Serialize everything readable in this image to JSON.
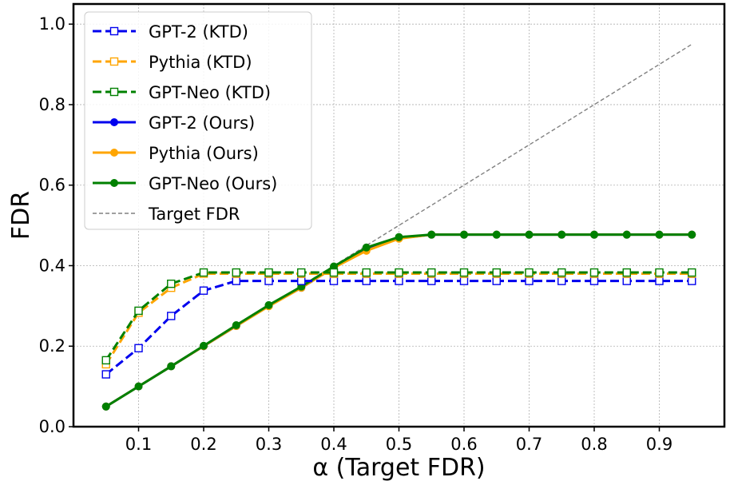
{
  "chart_data": {
    "type": "line",
    "title": "",
    "xlabel": "α (Target FDR)",
    "ylabel": "FDR",
    "xlim": [
      0.0,
      1.0
    ],
    "ylim": [
      0.0,
      1.05
    ],
    "xticks": [
      0.1,
      0.2,
      0.3,
      0.4,
      0.5,
      0.6,
      0.7,
      0.8,
      0.9
    ],
    "xtick_labels": [
      "0.1",
      "0.2",
      "0.3",
      "0.4",
      "0.5",
      "0.6",
      "0.7",
      "0.8",
      "0.9"
    ],
    "yticks": [
      0.0,
      0.2,
      0.4,
      0.6,
      0.8,
      1.0
    ],
    "ytick_labels": [
      "0.0",
      "0.2",
      "0.4",
      "0.6",
      "0.8",
      "1.0"
    ],
    "grid": true,
    "legend_position": "top-left",
    "x": [
      0.05,
      0.1,
      0.15,
      0.2,
      0.25,
      0.3,
      0.35,
      0.4,
      0.45,
      0.5,
      0.55,
      0.6,
      0.65,
      0.7,
      0.75,
      0.8,
      0.85,
      0.9,
      0.95
    ],
    "series": [
      {
        "name": "GPT-2 (KTD)",
        "color": "#0000ee",
        "style": "dashed",
        "marker": "square-open",
        "values": [
          0.13,
          0.195,
          0.275,
          0.338,
          0.362,
          0.362,
          0.362,
          0.362,
          0.362,
          0.362,
          0.362,
          0.362,
          0.362,
          0.362,
          0.362,
          0.362,
          0.362,
          0.362,
          0.362
        ]
      },
      {
        "name": "Pythia (KTD)",
        "color": "#ffa500",
        "style": "dashed",
        "marker": "square-open",
        "values": [
          0.155,
          0.283,
          0.345,
          0.38,
          0.38,
          0.38,
          0.38,
          0.38,
          0.38,
          0.38,
          0.38,
          0.38,
          0.38,
          0.38,
          0.38,
          0.38,
          0.38,
          0.38,
          0.38
        ]
      },
      {
        "name": "GPT-Neo (KTD)",
        "color": "#008000",
        "style": "dashed",
        "marker": "square-open",
        "values": [
          0.165,
          0.288,
          0.355,
          0.383,
          0.383,
          0.383,
          0.383,
          0.383,
          0.383,
          0.383,
          0.383,
          0.383,
          0.383,
          0.383,
          0.383,
          0.383,
          0.383,
          0.383,
          0.383
        ]
      },
      {
        "name": "GPT-2 (Ours)",
        "color": "#0000ee",
        "style": "solid",
        "marker": "circle",
        "values": [
          0.05,
          0.1,
          0.15,
          0.2,
          0.25,
          0.3,
          0.345,
          0.395,
          0.44,
          0.468,
          0.477,
          0.477,
          0.477,
          0.477,
          0.477,
          0.477,
          0.477,
          0.477,
          0.477
        ]
      },
      {
        "name": "Pythia (Ours)",
        "color": "#ffa500",
        "style": "solid",
        "marker": "circle",
        "values": [
          0.05,
          0.1,
          0.15,
          0.2,
          0.25,
          0.299,
          0.345,
          0.395,
          0.437,
          0.467,
          0.477,
          0.477,
          0.477,
          0.477,
          0.477,
          0.477,
          0.477,
          0.477,
          0.477
        ]
      },
      {
        "name": "GPT-Neo (Ours)",
        "color": "#008000",
        "style": "solid",
        "marker": "circle",
        "values": [
          0.05,
          0.1,
          0.15,
          0.201,
          0.252,
          0.302,
          0.348,
          0.398,
          0.445,
          0.471,
          0.477,
          0.477,
          0.477,
          0.477,
          0.477,
          0.477,
          0.477,
          0.477,
          0.477
        ]
      },
      {
        "name": "Target FDR",
        "color": "#808080",
        "style": "thin-dashed",
        "marker": "none",
        "values": [
          0.05,
          0.1,
          0.15,
          0.2,
          0.25,
          0.3,
          0.35,
          0.4,
          0.45,
          0.5,
          0.55,
          0.6,
          0.65,
          0.7,
          0.75,
          0.8,
          0.85,
          0.9,
          0.95
        ]
      }
    ]
  }
}
